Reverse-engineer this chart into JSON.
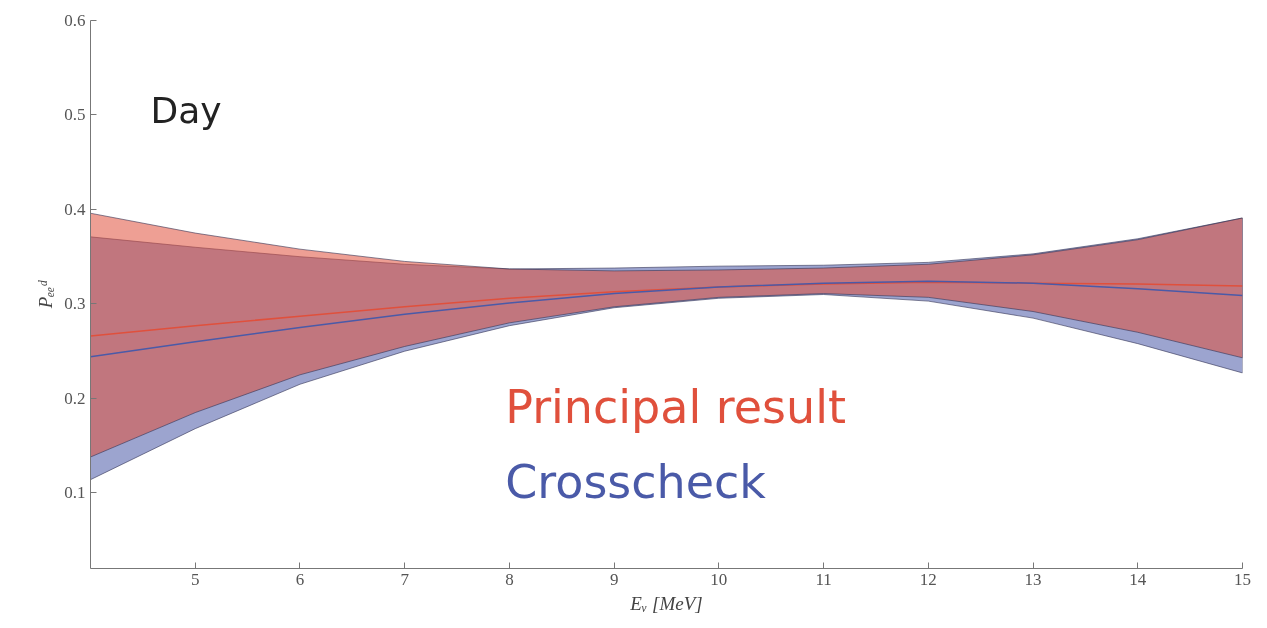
{
  "chart_data": {
    "type": "line",
    "xlabel": "Eᵥ [MeV]",
    "ylabel": "Pₑₑᵈ",
    "annotations": [
      "Day"
    ],
    "x": [
      4,
      5,
      6,
      7,
      8,
      9,
      10,
      11,
      12,
      13,
      14,
      15
    ],
    "series": [
      {
        "name": "Principal result",
        "color": "#e0503c",
        "values": [
          0.266,
          0.277,
          0.287,
          0.297,
          0.306,
          0.313,
          0.318,
          0.321,
          0.323,
          0.322,
          0.321,
          0.319
        ],
        "lower": [
          0.138,
          0.185,
          0.225,
          0.255,
          0.28,
          0.297,
          0.307,
          0.311,
          0.307,
          0.292,
          0.27,
          0.243
        ],
        "upper": [
          0.396,
          0.375,
          0.358,
          0.345,
          0.337,
          0.335,
          0.336,
          0.338,
          0.342,
          0.352,
          0.368,
          0.391
        ]
      },
      {
        "name": "Crosscheck",
        "color": "#4a5aa8",
        "values": [
          0.244,
          0.26,
          0.275,
          0.289,
          0.301,
          0.311,
          0.318,
          0.322,
          0.324,
          0.322,
          0.316,
          0.309
        ],
        "lower": [
          0.114,
          0.168,
          0.215,
          0.25,
          0.277,
          0.296,
          0.306,
          0.31,
          0.303,
          0.285,
          0.258,
          0.227
        ],
        "upper": [
          0.371,
          0.36,
          0.35,
          0.342,
          0.337,
          0.338,
          0.34,
          0.341,
          0.344,
          0.353,
          0.369,
          0.391
        ]
      }
    ],
    "xlim": [
      4,
      15
    ],
    "ylim": [
      0.02,
      0.6
    ],
    "xticks": [
      5,
      6,
      7,
      8,
      9,
      10,
      11,
      12,
      13,
      14,
      15
    ],
    "yticks": [
      0.1,
      0.2,
      0.3,
      0.4,
      0.5,
      0.6
    ],
    "grid": false,
    "legend": "bottom",
    "marker": "none",
    "line_style": "solid"
  }
}
